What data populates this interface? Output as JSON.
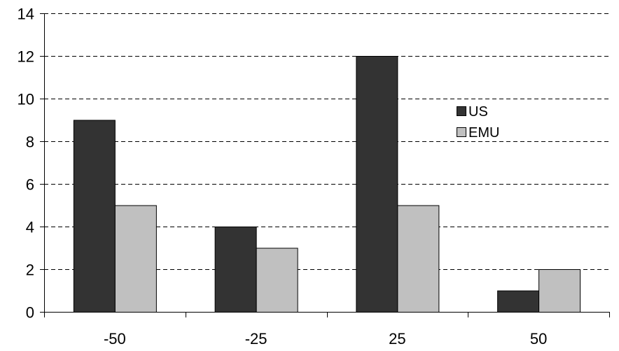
{
  "chart_data": {
    "type": "bar",
    "title": "",
    "xlabel": "",
    "ylabel": "",
    "categories": [
      "-50",
      "-25",
      "25",
      "50"
    ],
    "series": [
      {
        "name": "US",
        "values": [
          9,
          4,
          12,
          1
        ],
        "color": "#333333"
      },
      {
        "name": "EMU",
        "values": [
          5,
          3,
          5,
          2
        ],
        "color": "#c0c0c0"
      }
    ],
    "ylim": [
      0,
      14
    ],
    "yticks": [
      0,
      2,
      4,
      6,
      8,
      10,
      12,
      14
    ],
    "grid": "horizontal-dashed",
    "legend_position": "right"
  }
}
